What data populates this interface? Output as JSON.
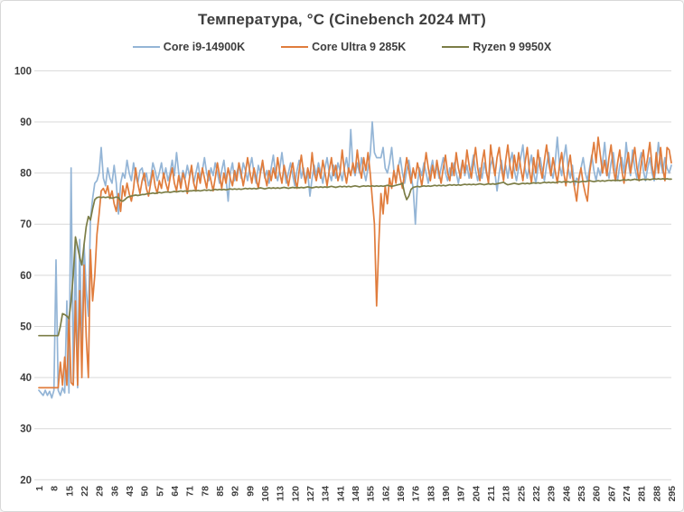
{
  "chart_data": {
    "type": "line",
    "title": "Температура, °C (Cinebench 2024 MT)",
    "xlabel": "",
    "ylabel": "",
    "ylim": [
      20,
      100
    ],
    "y_ticks": [
      100,
      90,
      80,
      70,
      60,
      50,
      40,
      30,
      20
    ],
    "x_max": 295,
    "x_ticks": [
      1,
      8,
      15,
      22,
      29,
      36,
      43,
      50,
      57,
      64,
      71,
      78,
      85,
      92,
      99,
      106,
      113,
      120,
      127,
      134,
      141,
      148,
      155,
      162,
      169,
      176,
      183,
      190,
      197,
      204,
      211,
      218,
      225,
      232,
      239,
      246,
      253,
      260,
      267,
      274,
      281,
      288,
      295
    ],
    "grid": "horizontal",
    "legend_position": "top",
    "colors": {
      "grid": "#d9d9d9",
      "axis_text": "#3e3e3e",
      "title_text": "#3e3e3e",
      "canvas_border": "#d8d8d8"
    },
    "series": [
      {
        "name": "Core i9-14900K",
        "color": "#94b5d6",
        "values": [
          37.5,
          37,
          36.5,
          37.5,
          36.5,
          37.3,
          36,
          37.5,
          63,
          37.5,
          36.5,
          38,
          37,
          55,
          37,
          81,
          39,
          66,
          38,
          67,
          44,
          66,
          57,
          52,
          71,
          75,
          78,
          78.5,
          80,
          85,
          79,
          77.5,
          81,
          79,
          78,
          81.5,
          78,
          72,
          78,
          80,
          79,
          82.5,
          80,
          78.5,
          82,
          79.5,
          78,
          80.5,
          81,
          78.5,
          80,
          77.5,
          79,
          82,
          80.5,
          78.5,
          80,
          82,
          79,
          81,
          78.5,
          80,
          82.5,
          79.5,
          84,
          80,
          78,
          80.5,
          79,
          81.5,
          79.5,
          81,
          78,
          80,
          82,
          79,
          80.5,
          83,
          80,
          78.5,
          81,
          79.5,
          82,
          80,
          78,
          80.5,
          82.5,
          79,
          74.5,
          80,
          82,
          78.5,
          80,
          81.5,
          79,
          82,
          80.5,
          78.5,
          81,
          83,
          80,
          78,
          81.5,
          80,
          82,
          79,
          80.5,
          78,
          81,
          83.5,
          80,
          78.5,
          81,
          84,
          80.5,
          78,
          80,
          82,
          79.5,
          77.5,
          80.5,
          82.5,
          79,
          81,
          78.5,
          80,
          75.5,
          79,
          81.5,
          79.5,
          82,
          80,
          78,
          81,
          83,
          80,
          78.5,
          81.5,
          79,
          82,
          80.5,
          78.5,
          81,
          83,
          80,
          88.5,
          81,
          79.5,
          82,
          80,
          83,
          80.5,
          78.5,
          81,
          83.5,
          90,
          84,
          83,
          83,
          83,
          85,
          81,
          80,
          82,
          85,
          80.5,
          78.5,
          81,
          83,
          80,
          78,
          80.5,
          82.5,
          79.5,
          77,
          70,
          78,
          81,
          79.5,
          82,
          80,
          78,
          80.5,
          82.5,
          79.5,
          81.5,
          79,
          81,
          83,
          80,
          78.5,
          81,
          79.5,
          82,
          80,
          78,
          80.5,
          82.5,
          79.5,
          81.5,
          79,
          81,
          83.5,
          80.5,
          78.5,
          81,
          79,
          82,
          80,
          78.5,
          81.5,
          83,
          80,
          76.5,
          80,
          82.5,
          79.5,
          81.5,
          79,
          82,
          84,
          80.5,
          78.5,
          81,
          83,
          85.5,
          81,
          79,
          81.5,
          83.5,
          80,
          78,
          81,
          83,
          80.5,
          78.5,
          81.5,
          84,
          80.5,
          79,
          82,
          87,
          81.5,
          79.5,
          83,
          85.5,
          81,
          79,
          81.5,
          77.5,
          79,
          78.5,
          81,
          83,
          80,
          78.5,
          81,
          83.5,
          80.5,
          78.5,
          81,
          79.5,
          82,
          86,
          81,
          79,
          82,
          84,
          80.5,
          78.5,
          81.5,
          83,
          80,
          86,
          82,
          79.5,
          84.5,
          81,
          79,
          82,
          84,
          80.5,
          78.5,
          81,
          83,
          80,
          78.5,
          81.5,
          86,
          82,
          80,
          83,
          81,
          80,
          81.5
        ]
      },
      {
        "name": "Core Ultra 9 285K",
        "color": "#e07c3c",
        "values": [
          38,
          38,
          38,
          38,
          38,
          38,
          38,
          38,
          38,
          38,
          43,
          38.5,
          44,
          38.5,
          52,
          39,
          38.5,
          55,
          38.5,
          57,
          40,
          62,
          48,
          40,
          65,
          55,
          60,
          68,
          72,
          76.5,
          77,
          76,
          77.5,
          75,
          76.5,
          74,
          72.5,
          76,
          72.5,
          77.5,
          75.5,
          78,
          76,
          74.5,
          77,
          81,
          78,
          76,
          78.5,
          80,
          77,
          75.5,
          78,
          80.5,
          77.5,
          76,
          78.5,
          77,
          80,
          78,
          76.5,
          79,
          81,
          78,
          76.5,
          79.5,
          77,
          80,
          78.5,
          76,
          79,
          81.5,
          78,
          76.5,
          80,
          78,
          81,
          79,
          77,
          80.5,
          78.5,
          76.5,
          79,
          82,
          79.5,
          77,
          80,
          78,
          81,
          79,
          77.5,
          80.5,
          78.5,
          82,
          80,
          77.5,
          80,
          83,
          80.5,
          78,
          81,
          79,
          77,
          80,
          82.5,
          79.5,
          77.5,
          80.5,
          78.5,
          81,
          79,
          83,
          80,
          78,
          81.5,
          79.5,
          77.5,
          80,
          82,
          79,
          77,
          80.5,
          83.5,
          80,
          78,
          81,
          79,
          84,
          80,
          78.5,
          81,
          79,
          82.5,
          80,
          77.5,
          80.5,
          83,
          79.5,
          81.5,
          78.5,
          80,
          84.5,
          80.5,
          78,
          81,
          79.5,
          82,
          80,
          84.5,
          81,
          79,
          83,
          80.5,
          84,
          80,
          75,
          70,
          54,
          66,
          76,
          72,
          77.5,
          74,
          79,
          77,
          80.5,
          78,
          81.5,
          79,
          77,
          80,
          83,
          80.5,
          78,
          81,
          79,
          82,
          80,
          77.5,
          80.5,
          84,
          81,
          78.5,
          81.5,
          79,
          82.5,
          80,
          78,
          81,
          83.5,
          80,
          78.5,
          82,
          79.5,
          84,
          81,
          79,
          82.5,
          80,
          84.5,
          81.5,
          79,
          82,
          85,
          81,
          78.5,
          82,
          84.5,
          80.5,
          78,
          85.5,
          82,
          79.5,
          83,
          85,
          81,
          78.5,
          82.5,
          85.5,
          81.5,
          79,
          83.5,
          80.5,
          84,
          81,
          78.5,
          82,
          85,
          80.5,
          78,
          83,
          80,
          84.5,
          81,
          79,
          82.5,
          85.5,
          82,
          79.5,
          83,
          80.5,
          78,
          81.5,
          84,
          80,
          77.5,
          81,
          83.5,
          79.5,
          77,
          74.5,
          79,
          81,
          78,
          76,
          74.5,
          80,
          83,
          86,
          82,
          87,
          83.5,
          80,
          82.5,
          79.5,
          83,
          85.5,
          81,
          78.5,
          82,
          84.5,
          80.5,
          78,
          81.5,
          84,
          80,
          82.5,
          85,
          81,
          78.5,
          82,
          84.5,
          80.5,
          83,
          86,
          81.5,
          79,
          84,
          80,
          85,
          81,
          78.5,
          85,
          84.5,
          82
        ]
      },
      {
        "name": "Ryzen 9 9950X",
        "color": "#7b7d46",
        "values": [
          48.2,
          48.2,
          48.2,
          48.2,
          48.2,
          48.2,
          48.2,
          48.2,
          48.2,
          48.2,
          50,
          52.5,
          52.3,
          52,
          51.5,
          55,
          60,
          67.5,
          65.5,
          63.5,
          62,
          66,
          69.5,
          71.5,
          70.8,
          73,
          74.8,
          75.2,
          75.3,
          75.2,
          75.3,
          75.2,
          75.3,
          75.2,
          75.1,
          75.2,
          75.3,
          75.2,
          74.6,
          74.5,
          74.8,
          75.2,
          75.4,
          75.5,
          75.6,
          75.7,
          75.6,
          75.7,
          75.8,
          75.8,
          75.9,
          76,
          76,
          76.1,
          76,
          76.1,
          76.2,
          76.1,
          76.2,
          76.3,
          76.3,
          76.2,
          76.3,
          76.4,
          76.3,
          76.4,
          76.5,
          76.4,
          76.5,
          76.4,
          76.5,
          76.5,
          76.6,
          76.5,
          76.6,
          76.5,
          76.6,
          76.7,
          76.6,
          76.7,
          76.6,
          76.7,
          76.8,
          76.7,
          76.8,
          76.7,
          76.8,
          76.7,
          76.8,
          76.9,
          76.8,
          76.9,
          76.8,
          76.9,
          76.8,
          76.9,
          77,
          76.9,
          77,
          76.9,
          77,
          76.9,
          77,
          77.1,
          77,
          76.9,
          77,
          77.1,
          77,
          77.1,
          77,
          77.1,
          77,
          77.1,
          77.2,
          77.1,
          77,
          77.1,
          77.2,
          77.1,
          77.2,
          77.1,
          77.2,
          77.1,
          77.2,
          77.3,
          77.2,
          77.1,
          77.2,
          77.3,
          77.2,
          77.3,
          77.2,
          77.3,
          77.2,
          77.3,
          77.4,
          77.3,
          77.2,
          77.3,
          77.4,
          77.3,
          77.4,
          77.3,
          77.4,
          77.3,
          77.4,
          77.5,
          77.4,
          77.3,
          77.4,
          77.5,
          77.4,
          77.5,
          77.4,
          77.5,
          77.4,
          77.5,
          77.4,
          77.5,
          77.4,
          77.5,
          77.6,
          77.5,
          77.4,
          77.5,
          77.6,
          77.7,
          77.8,
          78,
          76,
          74.8,
          75.5,
          76.8,
          77.2,
          77.3,
          77.4,
          77.3,
          77.4,
          77.5,
          77.4,
          77.5,
          77.4,
          77.5,
          77.6,
          77.5,
          77.6,
          77.5,
          77.6,
          77.5,
          77.6,
          77.7,
          77.6,
          77.7,
          77.6,
          77.7,
          77.6,
          77.7,
          77.8,
          77.7,
          77.8,
          77.7,
          77.8,
          77.7,
          77.8,
          77.9,
          77.8,
          77.7,
          77.8,
          77.9,
          77.8,
          77.9,
          77.8,
          77.9,
          78,
          78.1,
          78.2,
          77.9,
          77.7,
          77.8,
          77.9,
          78,
          77.9,
          77.8,
          77.9,
          78,
          77.9,
          78,
          77.9,
          78,
          78.1,
          78,
          78.1,
          78,
          78.1,
          78.2,
          78.1,
          78.2,
          78.1,
          78.2,
          78.1,
          78.2,
          78.3,
          78.2,
          78.3,
          78.2,
          78.3,
          78.2,
          78.3,
          78.4,
          78.3,
          78.2,
          78.3,
          78.4,
          78.3,
          78.4,
          78.5,
          78.4,
          78.3,
          78.4,
          78.5,
          78.4,
          78.5,
          78.4,
          78.5,
          78.6,
          78.5,
          78.6,
          78.5,
          78.6,
          78.5,
          78.6,
          78.7,
          78.6,
          78.7,
          78.6,
          78.7,
          78.8,
          78.7,
          78.6,
          78.7,
          78.8,
          78.7,
          78.8,
          78.7,
          78.8,
          78.9,
          78.8,
          78.9,
          78.8,
          78.9,
          78.8,
          78.9,
          78.8,
          78.8
        ]
      }
    ]
  }
}
